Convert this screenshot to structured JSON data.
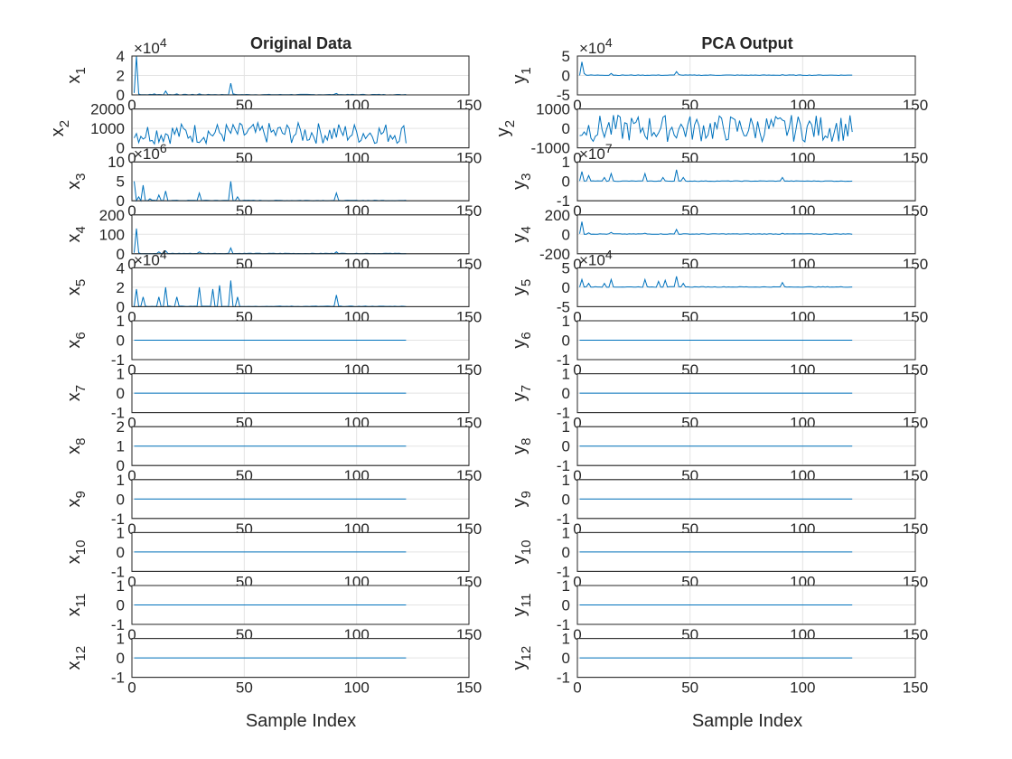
{
  "figure": {
    "background": "#ffffff",
    "line_color": "#0072bd",
    "grid": true
  },
  "chart_data": [
    {
      "title": "Original Data",
      "xlabel": "Sample Index",
      "xlim": [
        0,
        150
      ],
      "xticks": [
        "0",
        "50",
        "100",
        "150"
      ],
      "type": "line",
      "x_range_of_series": [
        1,
        122
      ],
      "subplots": [
        {
          "ylabel": "x",
          "sub": "1",
          "exponent": "×10^4",
          "ylim": [
            0,
            4
          ],
          "yticks": [
            "0",
            "2",
            "4"
          ],
          "peaks": [
            [
              1,
              0.2
            ],
            [
              2,
              4
            ],
            [
              3,
              0.1
            ],
            [
              10,
              0.1
            ],
            [
              15,
              0.4
            ],
            [
              20,
              0.1
            ],
            [
              30,
              0.1
            ],
            [
              44,
              1.2
            ],
            [
              45,
              0.1
            ],
            [
              91,
              0.15
            ],
            [
              122,
              0.05
            ]
          ]
        },
        {
          "ylabel": "x",
          "sub": "2",
          "exponent": "",
          "ylim": [
            0,
            2000
          ],
          "yticks": [
            "0",
            "1000",
            "2000"
          ],
          "pattern": "oscillating 200-1300"
        },
        {
          "ylabel": "x",
          "sub": "3",
          "exponent": "×10^6",
          "ylim": [
            0,
            10
          ],
          "yticks": [
            "0",
            "5",
            "10"
          ],
          "peaks": [
            [
              1,
              5
            ],
            [
              3,
              1
            ],
            [
              5,
              4
            ],
            [
              8,
              0.5
            ],
            [
              12,
              1.5
            ],
            [
              15,
              2.5
            ],
            [
              30,
              2
            ],
            [
              44,
              5
            ],
            [
              47,
              1
            ],
            [
              91,
              2
            ]
          ]
        },
        {
          "ylabel": "x",
          "sub": "4",
          "exponent": "",
          "ylim": [
            0,
            200
          ],
          "yticks": [
            "0",
            "100",
            "200"
          ],
          "peaks": [
            [
              1,
              5
            ],
            [
              2,
              130
            ],
            [
              3,
              5
            ],
            [
              12,
              10
            ],
            [
              15,
              15
            ],
            [
              30,
              10
            ],
            [
              44,
              30
            ],
            [
              91,
              10
            ]
          ]
        },
        {
          "ylabel": "x",
          "sub": "5",
          "exponent": "×10^4",
          "ylim": [
            0,
            4
          ],
          "yticks": [
            "0",
            "2",
            "4"
          ],
          "peaks": [
            [
              2,
              1.8
            ],
            [
              5,
              1
            ],
            [
              12,
              1
            ],
            [
              15,
              2
            ],
            [
              20,
              1
            ],
            [
              30,
              2
            ],
            [
              36,
              1.8
            ],
            [
              39,
              2.2
            ],
            [
              44,
              2.7
            ],
            [
              47,
              1
            ],
            [
              91,
              1.2
            ]
          ]
        },
        {
          "ylabel": "x",
          "sub": "6",
          "exponent": "",
          "ylim": [
            -1,
            1
          ],
          "yticks": [
            "-1",
            "0",
            "1"
          ],
          "constant": 0
        },
        {
          "ylabel": "x",
          "sub": "7",
          "exponent": "",
          "ylim": [
            -1,
            1
          ],
          "yticks": [
            "-1",
            "0",
            "1"
          ],
          "constant": 0
        },
        {
          "ylabel": "x",
          "sub": "8",
          "exponent": "",
          "ylim": [
            0,
            2
          ],
          "yticks": [
            "0",
            "1",
            "2"
          ],
          "constant": 1
        },
        {
          "ylabel": "x",
          "sub": "9",
          "exponent": "",
          "ylim": [
            -1,
            1
          ],
          "yticks": [
            "-1",
            "0",
            "1"
          ],
          "constant": 0
        },
        {
          "ylabel": "x",
          "sub": "10",
          "exponent": "",
          "ylim": [
            -1,
            1
          ],
          "yticks": [
            "-1",
            "0",
            "1"
          ],
          "constant": 0
        },
        {
          "ylabel": "x",
          "sub": "11",
          "exponent": "",
          "ylim": [
            -1,
            1
          ],
          "yticks": [
            "-1",
            "0",
            "1"
          ],
          "constant": 0
        },
        {
          "ylabel": "x",
          "sub": "12",
          "exponent": "",
          "ylim": [
            -1,
            1
          ],
          "yticks": [
            "-1",
            "0",
            "1"
          ],
          "constant": 0
        }
      ]
    },
    {
      "title": "PCA Output",
      "xlabel": "Sample Index",
      "xlim": [
        0,
        150
      ],
      "xticks": [
        "0",
        "50",
        "100",
        "150"
      ],
      "type": "line",
      "x_range_of_series": [
        1,
        122
      ],
      "subplots": [
        {
          "ylabel": "y",
          "sub": "1",
          "exponent": "×10^4",
          "ylim": [
            -5,
            5
          ],
          "yticks": [
            "-5",
            "0",
            "5"
          ],
          "peaks": [
            [
              2,
              3.5
            ],
            [
              3,
              0.5
            ],
            [
              15,
              0.5
            ],
            [
              44,
              1
            ],
            [
              45,
              0.2
            ],
            [
              91,
              0.2
            ]
          ]
        },
        {
          "ylabel": "y",
          "sub": "2",
          "exponent": "",
          "ylim": [
            -1000,
            1000
          ],
          "yticks": [
            "-1000",
            "0",
            "1000"
          ],
          "pattern": "oscillating -700..700"
        },
        {
          "ylabel": "y",
          "sub": "3",
          "exponent": "×10^7",
          "ylim": [
            -1,
            1
          ],
          "yticks": [
            "-1",
            "0",
            "1"
          ],
          "peaks": [
            [
              2,
              0.5
            ],
            [
              5,
              0.3
            ],
            [
              12,
              0.2
            ],
            [
              15,
              0.4
            ],
            [
              30,
              0.4
            ],
            [
              38,
              0.2
            ],
            [
              44,
              0.6
            ],
            [
              47,
              0.2
            ],
            [
              91,
              0.2
            ]
          ]
        },
        {
          "ylabel": "y",
          "sub": "4",
          "exponent": "",
          "ylim": [
            -200,
            200
          ],
          "yticks": [
            "-200",
            "0",
            "200"
          ],
          "peaks": [
            [
              2,
              130
            ],
            [
              5,
              15
            ],
            [
              15,
              20
            ],
            [
              30,
              10
            ],
            [
              44,
              50
            ],
            [
              91,
              10
            ]
          ]
        },
        {
          "ylabel": "y",
          "sub": "5",
          "exponent": "×10^4",
          "ylim": [
            -5,
            5
          ],
          "yticks": [
            "-5",
            "0",
            "5"
          ],
          "peaks": [
            [
              2,
              2
            ],
            [
              5,
              1
            ],
            [
              12,
              1
            ],
            [
              15,
              2
            ],
            [
              30,
              2
            ],
            [
              36,
              1.5
            ],
            [
              39,
              1.8
            ],
            [
              44,
              2.8
            ],
            [
              47,
              1
            ],
            [
              91,
              1.2
            ]
          ]
        },
        {
          "ylabel": "y",
          "sub": "6",
          "exponent": "",
          "ylim": [
            -1,
            1
          ],
          "yticks": [
            "-1",
            "0",
            "1"
          ],
          "constant": 0
        },
        {
          "ylabel": "y",
          "sub": "7",
          "exponent": "",
          "ylim": [
            -1,
            1
          ],
          "yticks": [
            "-1",
            "0",
            "1"
          ],
          "constant": 0
        },
        {
          "ylabel": "y",
          "sub": "8",
          "exponent": "",
          "ylim": [
            -1,
            1
          ],
          "yticks": [
            "-1",
            "0",
            "1"
          ],
          "constant": 0
        },
        {
          "ylabel": "y",
          "sub": "9",
          "exponent": "",
          "ylim": [
            -1,
            1
          ],
          "yticks": [
            "-1",
            "0",
            "1"
          ],
          "constant": 0
        },
        {
          "ylabel": "y",
          "sub": "10",
          "exponent": "",
          "ylim": [
            -1,
            1
          ],
          "yticks": [
            "-1",
            "0",
            "1"
          ],
          "constant": 0
        },
        {
          "ylabel": "y",
          "sub": "11",
          "exponent": "",
          "ylim": [
            -1,
            1
          ],
          "yticks": [
            "-1",
            "0",
            "1"
          ],
          "constant": 0
        },
        {
          "ylabel": "y",
          "sub": "12",
          "exponent": "",
          "ylim": [
            -1,
            1
          ],
          "yticks": [
            "-1",
            "0",
            "1"
          ],
          "constant": 0
        }
      ]
    }
  ]
}
